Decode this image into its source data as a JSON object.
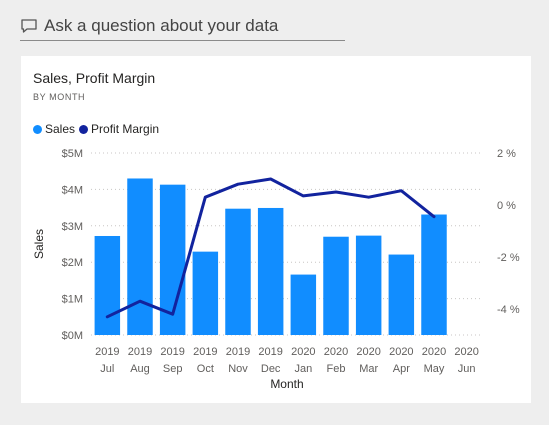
{
  "qa": {
    "placeholder": "Ask a question about your data",
    "icon": "speech-bubble-icon"
  },
  "chart_data": {
    "type": "bar",
    "title": "Sales, Profit Margin",
    "subtitle": "BY MONTH",
    "xlabel": "Month",
    "ylabel": "Sales",
    "categories": [
      {
        "year": "2019",
        "month": "Jul"
      },
      {
        "year": "2019",
        "month": "Aug"
      },
      {
        "year": "2019",
        "month": "Sep"
      },
      {
        "year": "2019",
        "month": "Oct"
      },
      {
        "year": "2019",
        "month": "Nov"
      },
      {
        "year": "2019",
        "month": "Dec"
      },
      {
        "year": "2020",
        "month": "Jan"
      },
      {
        "year": "2020",
        "month": "Feb"
      },
      {
        "year": "2020",
        "month": "Mar"
      },
      {
        "year": "2020",
        "month": "Apr"
      },
      {
        "year": "2020",
        "month": "May"
      },
      {
        "year": "2020",
        "month": "Jun"
      }
    ],
    "series": [
      {
        "name": "Sales",
        "type": "bar",
        "axis": "left",
        "color": "#118dff",
        "values": [
          2720000,
          4300000,
          4130000,
          2290000,
          3470000,
          3490000,
          1660000,
          2700000,
          2730000,
          2210000,
          3310000,
          null
        ]
      },
      {
        "name": "Profit Margin",
        "type": "line",
        "axis": "right",
        "color": "#12239e",
        "values": [
          -4.3,
          -3.7,
          -4.2,
          0.3,
          0.8,
          1.0,
          0.35,
          0.5,
          0.3,
          0.55,
          -0.45,
          null
        ]
      }
    ],
    "y_left": {
      "min": 0,
      "max": 5000000,
      "ticks": [
        0,
        1000000,
        2000000,
        3000000,
        4000000,
        5000000
      ],
      "tick_labels": [
        "$0M",
        "$1M",
        "$2M",
        "$3M",
        "$4M",
        "$5M"
      ]
    },
    "y_right": {
      "min": -5,
      "max": 2,
      "ticks": [
        -4,
        -2,
        0,
        2
      ],
      "tick_labels": [
        "-4 %",
        "-2 %",
        "0 %",
        "2 %"
      ]
    },
    "legend_position": "top-left",
    "grid": true
  }
}
